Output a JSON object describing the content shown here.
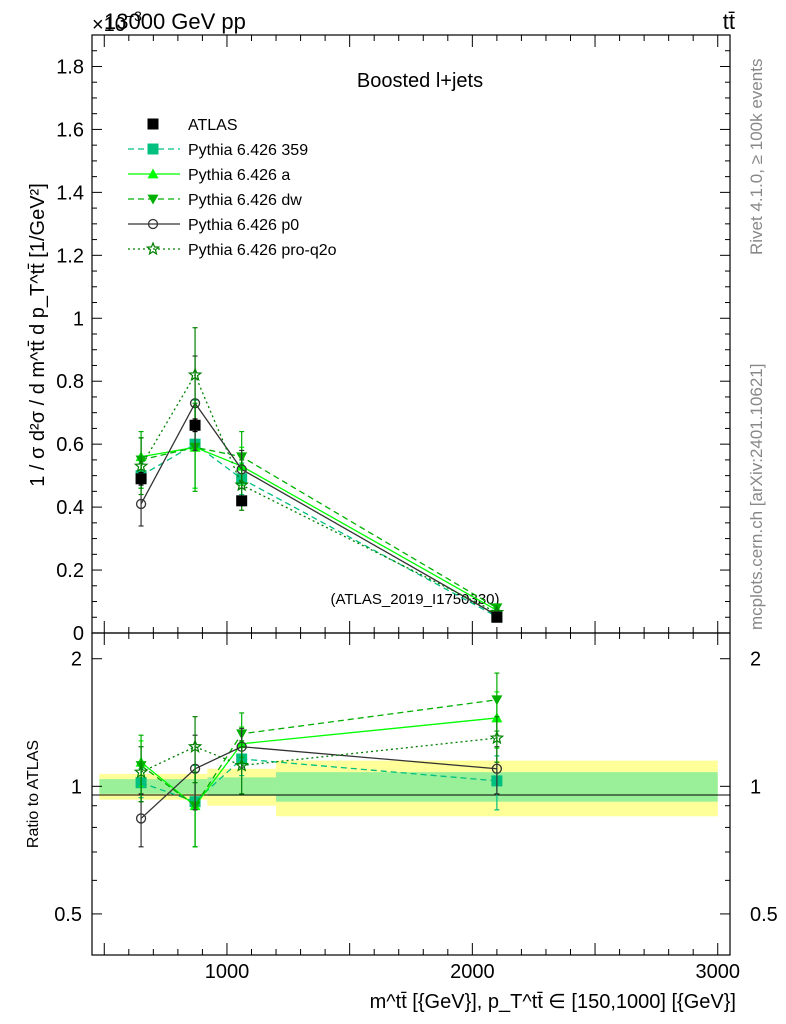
{
  "header": {
    "scale_prefix": "×10",
    "scale_exponent": "−3",
    "energy": "13000 GeV pp",
    "process": "tt̄"
  },
  "side_labels": {
    "rivet": "Rivet 4.1.0, ≥ 100k events",
    "mcplots": "mcplots.cern.ch [arXiv:2401.10621]"
  },
  "colors": {
    "ATLAS": "#000000",
    "Pythia 6.426 359": "#00c080",
    "Pythia 6.426 a": "#00ff00",
    "Pythia 6.426 dw": "#00b000",
    "Pythia 6.426 p0": "#333333",
    "Pythia 6.426 pro-q2o": "#008000",
    "band_inner": "#99f099",
    "band_outer": "#ffff99"
  },
  "chart_data": [
    {
      "type": "line",
      "title": "Boosted l+jets",
      "watermark": "(ATLAS_2019_I1750330)",
      "ylabel": "1 / σ d²σ / d m^tt̄ d p_T^tt̄ [1/GeV²]",
      "ylim": [
        0,
        1.9
      ],
      "yticks": [
        "0",
        "0.2",
        "0.4",
        "0.6",
        "0.8",
        "1",
        "1.2",
        "1.4",
        "1.6",
        "1.8"
      ],
      "x": [
        650,
        870,
        1060,
        2100
      ],
      "series": [
        {
          "name": "ATLAS",
          "values": [
            0.49,
            0.66,
            0.42,
            0.05
          ],
          "errors": [
            0.02,
            0.02,
            0.015,
            0.005
          ],
          "marker": "square",
          "dash": "none"
        },
        {
          "name": "Pythia 6.426 359",
          "values": [
            0.5,
            0.6,
            0.49,
            0.052
          ],
          "errors": [
            0.04,
            0.14,
            0.05,
            0.008
          ],
          "marker": "square",
          "dash": "6,4"
        },
        {
          "name": "Pythia 6.426 a",
          "values": [
            0.56,
            0.59,
            0.53,
            0.072
          ],
          "errors": [
            0.06,
            0.13,
            0.06,
            0.008
          ],
          "marker": "triangle-up",
          "dash": "none"
        },
        {
          "name": "Pythia 6.426 dw",
          "values": [
            0.55,
            0.59,
            0.56,
            0.08
          ],
          "errors": [
            0.09,
            0.14,
            0.08,
            0.012
          ],
          "marker": "triangle-down",
          "dash": "6,4"
        },
        {
          "name": "Pythia 6.426 p0",
          "values": [
            0.41,
            0.73,
            0.52,
            0.056
          ],
          "errors": [
            0.07,
            0.15,
            0.06,
            0.008
          ],
          "marker": "circle-open",
          "dash": "none"
        },
        {
          "name": "Pythia 6.426 pro-q2o",
          "values": [
            0.53,
            0.82,
            0.47,
            0.065
          ],
          "errors": [
            0.09,
            0.15,
            0.08,
            0.008
          ],
          "marker": "star-open",
          "dash": "2,3"
        }
      ]
    },
    {
      "type": "line",
      "ylabel": "Ratio to ATLAS",
      "xlabel": "m^tt̄ [{GeV}], p_T^tt̄ ∈ [150,1000] [{GeV}]",
      "xlim": [
        450,
        3050
      ],
      "xticks": [
        "1000",
        "2000",
        "3000"
      ],
      "ylim": [
        0.4,
        2.3
      ],
      "yticks": [
        "0.5",
        "1",
        "2"
      ],
      "bands": [
        {
          "x_range": [
            480,
            920
          ],
          "inner": [
            0.96,
            1.04
          ],
          "outer": [
            0.93,
            1.07
          ]
        },
        {
          "x_range": [
            920,
            1200
          ],
          "inner": [
            0.95,
            1.05
          ],
          "outer": [
            0.9,
            1.1
          ]
        },
        {
          "x_range": [
            1200,
            3000
          ],
          "inner": [
            0.92,
            1.08
          ],
          "outer": [
            0.85,
            1.15
          ]
        }
      ],
      "x": [
        650,
        870,
        1060,
        2100
      ],
      "series": [
        {
          "name": "Pythia 6.426 359",
          "values": [
            1.02,
            0.92,
            1.16,
            1.03
          ],
          "errors": [
            0.08,
            0.2,
            0.1,
            0.15
          ]
        },
        {
          "name": "Pythia 6.426 a",
          "values": [
            1.14,
            0.9,
            1.26,
            1.45
          ],
          "errors": [
            0.14,
            0.18,
            0.12,
            0.22
          ]
        },
        {
          "name": "Pythia 6.426 dw",
          "values": [
            1.12,
            0.9,
            1.33,
            1.6
          ],
          "errors": [
            0.2,
            0.18,
            0.16,
            0.25
          ]
        },
        {
          "name": "Pythia 6.426 p0",
          "values": [
            0.84,
            1.1,
            1.24,
            1.1
          ],
          "errors": [
            0.12,
            0.22,
            0.13,
            0.14
          ]
        },
        {
          "name": "Pythia 6.426 pro-q2o",
          "values": [
            1.08,
            1.24,
            1.12,
            1.3
          ],
          "errors": [
            0.16,
            0.22,
            0.16,
            0.16
          ]
        }
      ]
    }
  ]
}
